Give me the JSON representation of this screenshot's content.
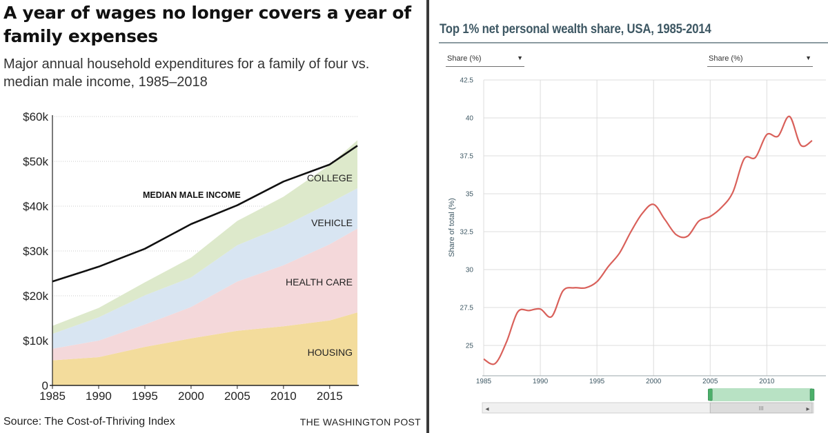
{
  "left": {
    "title": "A year of wages no longer covers a year of family expenses",
    "subtitle": "Major annual household expenditures for a family of four vs. median male income, 1985–2018",
    "source": "Source: The Cost-of-Thriving Index",
    "credit": "THE WASHINGTON POST",
    "colors": {
      "housing": "#f3dc9c",
      "health_care": "#f4d8da",
      "vehicle": "#d8e5f2",
      "college": "#dde9cb",
      "income_line": "#111111"
    }
  },
  "right": {
    "title": "Top 1% net personal wealth share, USA, 1985-2014",
    "dropdown_left": "Share (%)",
    "dropdown_right": "Share (%)",
    "caret": "▼",
    "scroll_left_arrow": "◂",
    "scroll_right_arrow": "▸",
    "scroll_grip": "III",
    "range_selection": [
      2005,
      2014
    ],
    "colors": {
      "line": "#d9605a",
      "grid": "#dcdcdc",
      "navigator": "#b8e2c4",
      "handle": "#4caf6a"
    }
  },
  "chart_data": [
    {
      "type": "area",
      "stacked": true,
      "xlim": [
        1985,
        2018
      ],
      "ylim": [
        0,
        60000
      ],
      "y_ticks": [
        0,
        10000,
        20000,
        30000,
        40000,
        50000,
        60000
      ],
      "y_tick_labels": [
        "0",
        "$10k",
        "$20k",
        "$30k",
        "$40k",
        "$50k",
        "$60k"
      ],
      "x_ticks": [
        1985,
        1990,
        1995,
        2000,
        2005,
        2010,
        2015
      ],
      "x_tick_labels": [
        "1985",
        "1990",
        "1995",
        "2000",
        "2005",
        "2010",
        "2015"
      ],
      "x": [
        1985,
        1990,
        1995,
        2000,
        2005,
        2010,
        2015,
        2018
      ],
      "series": [
        {
          "name": "HOUSING",
          "values": [
            5600,
            6300,
            8600,
            10500,
            12200,
            13200,
            14500,
            16300
          ]
        },
        {
          "name": "HEALTH CARE",
          "values": [
            2600,
            3700,
            5000,
            7000,
            11000,
            13600,
            17000,
            18700
          ]
        },
        {
          "name": "VEHICLE",
          "values": [
            3300,
            5200,
            6500,
            6600,
            8100,
            8700,
            9200,
            9000
          ]
        },
        {
          "name": "COLLEGE",
          "values": [
            1800,
            2100,
            2900,
            4400,
            5400,
            6600,
            8500,
            10700
          ]
        }
      ],
      "line": {
        "name": "MEDIAN MALE INCOME",
        "values": [
          23200,
          26500,
          30500,
          36000,
          40200,
          45500,
          49300,
          53500
        ]
      }
    },
    {
      "type": "line",
      "ylabel": "Share of total (%)",
      "xlim": [
        1985,
        2014
      ],
      "ylim": [
        23,
        42.5
      ],
      "y_ticks": [
        25,
        27.5,
        30,
        32.5,
        35,
        37.5,
        40,
        42.5
      ],
      "y_tick_labels": [
        "25",
        "27.5",
        "30",
        "32.5",
        "35",
        "37.5",
        "40",
        "42.5"
      ],
      "x_ticks": [
        1985,
        1990,
        1995,
        2000,
        2005,
        2010
      ],
      "x_tick_labels": [
        "1985",
        "1990",
        "1995",
        "2000",
        "2005",
        "2010"
      ],
      "x": [
        1985,
        1986,
        1987,
        1988,
        1989,
        1990,
        1991,
        1992,
        1993,
        1994,
        1995,
        1996,
        1997,
        1998,
        1999,
        2000,
        2001,
        2002,
        2003,
        2004,
        2005,
        2006,
        2007,
        2008,
        2009,
        2010,
        2011,
        2012,
        2013,
        2014
      ],
      "y": [
        24.1,
        23.8,
        25.2,
        27.2,
        27.3,
        27.4,
        26.9,
        28.6,
        28.8,
        28.8,
        29.2,
        30.2,
        31.1,
        32.5,
        33.7,
        34.3,
        33.3,
        32.3,
        32.2,
        33.2,
        33.5,
        34.1,
        35.1,
        37.3,
        37.4,
        38.9,
        38.8,
        40.1,
        38.2,
        38.5
      ]
    }
  ]
}
